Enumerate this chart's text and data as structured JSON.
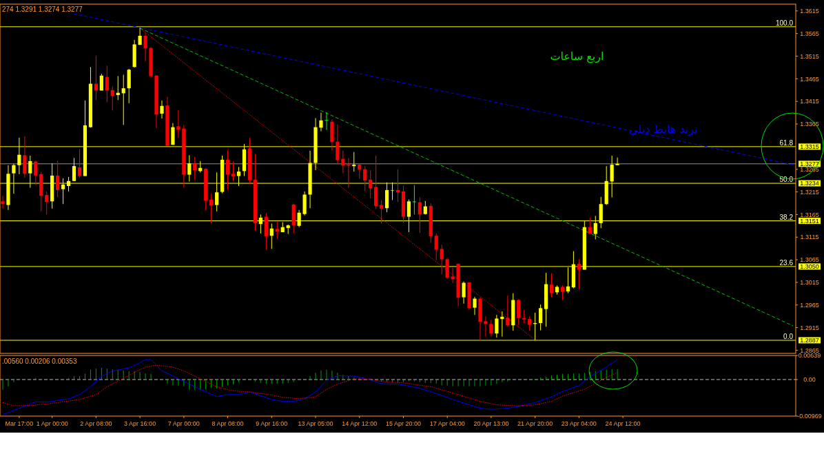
{
  "chart_data": [
    {
      "type": "candlestick",
      "tick_labels": "y",
      "categories": [
        null,
        null,
        null,
        null,
        null,
        null,
        null,
        null,
        null,
        null,
        null,
        null,
        null,
        null,
        null,
        null,
        null,
        null,
        null,
        null,
        null,
        null,
        null,
        null,
        null,
        null,
        null,
        null,
        null,
        null,
        null,
        null,
        null,
        null,
        null,
        null,
        null,
        null,
        null,
        null,
        null,
        null,
        null,
        null,
        null,
        null,
        null,
        null,
        null,
        null,
        null,
        null,
        null,
        null,
        null,
        null,
        null,
        null,
        null,
        null,
        null,
        null,
        null,
        null,
        null,
        null,
        null,
        null,
        null,
        null,
        null,
        null,
        null,
        null,
        null,
        null,
        null,
        null,
        null,
        null,
        null,
        null,
        null,
        null,
        null,
        null,
        null,
        null,
        null,
        null,
        null,
        null,
        null,
        null,
        null,
        null,
        null,
        null,
        null,
        null,
        null,
        null,
        null,
        null,
        null,
        null,
        null,
        null,
        null,
        null,
        null,
        null,
        null,
        null,
        null,
        null,
        null,
        null,
        null,
        null,
        null,
        null,
        null,
        null,
        null,
        null,
        null,
        null,
        null,
        null,
        null,
        null,
        null,
        null,
        null,
        null,
        null,
        null,
        null,
        null,
        null,
        null,
        null,
        null,
        null
      ],
      "ohlc": [
        [
          1.3194,
          1.3206,
          1.3178,
          1.3188
        ],
        [
          1.3186,
          1.3274,
          1.3175,
          1.3255
        ],
        [
          1.3256,
          1.3277,
          1.3211,
          1.3274
        ],
        [
          1.3274,
          1.3335,
          1.3254,
          1.3297
        ],
        [
          1.3296,
          1.3338,
          1.3246,
          1.3255
        ],
        [
          1.3256,
          1.3295,
          1.3224,
          1.3283
        ],
        [
          1.3282,
          1.3284,
          1.323,
          1.3251
        ],
        [
          1.3254,
          1.3259,
          1.3172,
          1.3206
        ],
        [
          1.3208,
          1.3216,
          1.3165,
          1.3193
        ],
        [
          1.3194,
          1.3278,
          1.3178,
          1.3251
        ],
        [
          1.3251,
          1.3284,
          1.3203,
          1.3219
        ],
        [
          1.3221,
          1.3245,
          1.3188,
          1.3231
        ],
        [
          1.3228,
          1.3248,
          1.3216,
          1.3239
        ],
        [
          1.3239,
          1.329,
          1.3239,
          1.3272
        ],
        [
          1.3269,
          1.3309,
          1.3247,
          1.325
        ],
        [
          1.325,
          1.3417,
          1.325,
          1.3362
        ],
        [
          1.3358,
          1.3491,
          1.3357,
          1.3454
        ],
        [
          1.3454,
          1.3516,
          1.3418,
          1.3439
        ],
        [
          1.3439,
          1.3476,
          1.3439,
          1.3472
        ],
        [
          1.3469,
          1.3494,
          1.3413,
          1.3439
        ],
        [
          1.344,
          1.3448,
          1.3395,
          1.3427
        ],
        [
          1.3429,
          1.3471,
          1.3418,
          1.3434
        ],
        [
          1.3433,
          1.3474,
          1.3363,
          1.3444
        ],
        [
          1.3444,
          1.3487,
          1.3411,
          1.3485
        ],
        [
          1.3491,
          1.3551,
          1.349,
          1.3541
        ],
        [
          1.354,
          1.3578,
          1.354,
          1.356
        ],
        [
          1.356,
          1.3566,
          1.3504,
          1.3532
        ],
        [
          1.3533,
          1.3535,
          1.3467,
          1.3471
        ],
        [
          1.3472,
          1.3473,
          1.3356,
          1.3386
        ],
        [
          1.3388,
          1.3417,
          1.3377,
          1.3405
        ],
        [
          1.3406,
          1.3425,
          1.3317,
          1.3317
        ],
        [
          1.3319,
          1.3367,
          1.3319,
          1.3358
        ],
        [
          1.336,
          1.3396,
          1.3335,
          1.3352
        ],
        [
          1.3355,
          1.3363,
          1.3224,
          1.3253
        ],
        [
          1.3253,
          1.3296,
          1.3238,
          1.3278
        ],
        [
          1.3277,
          1.3293,
          1.3241,
          1.3263
        ],
        [
          1.3261,
          1.3283,
          1.3258,
          1.3268
        ],
        [
          1.3266,
          1.3267,
          1.3174,
          1.3196
        ],
        [
          1.3198,
          1.3211,
          1.3146,
          1.3185
        ],
        [
          1.3186,
          1.3258,
          1.3172,
          1.3214
        ],
        [
          1.3215,
          1.3295,
          1.3212,
          1.3286
        ],
        [
          1.3286,
          1.3307,
          1.322,
          1.3253
        ],
        [
          1.3255,
          1.3282,
          1.3239,
          1.3249
        ],
        [
          1.325,
          1.327,
          1.3228,
          1.326
        ],
        [
          1.3261,
          1.3321,
          1.325,
          1.3309
        ],
        [
          1.3311,
          1.3334,
          1.3233,
          1.3241
        ],
        [
          1.3242,
          1.3299,
          1.3129,
          1.3146
        ],
        [
          1.3144,
          1.3165,
          1.3123,
          1.3158
        ],
        [
          1.316,
          1.3168,
          1.3087,
          1.3117
        ],
        [
          1.3118,
          1.3145,
          1.3089,
          1.3134
        ],
        [
          1.3133,
          1.3149,
          1.3111,
          1.3127
        ],
        [
          1.3126,
          1.3148,
          1.3126,
          1.3137
        ],
        [
          1.3135,
          1.3143,
          1.3122,
          1.3141
        ],
        [
          1.3187,
          1.3189,
          1.3123,
          1.3141
        ],
        [
          1.314,
          1.3175,
          1.3137,
          1.3169
        ],
        [
          1.3166,
          1.3216,
          1.3163,
          1.3209
        ],
        [
          1.3209,
          1.3306,
          1.3179,
          1.3279
        ],
        [
          1.3279,
          1.3378,
          1.3263,
          1.3358
        ],
        [
          1.3357,
          1.339,
          1.3349,
          1.3373
        ],
        [
          1.3373,
          1.3391,
          1.3352,
          1.3373
        ],
        [
          1.337,
          1.3375,
          1.3306,
          1.3325
        ],
        [
          1.3326,
          1.3364,
          1.3276,
          1.3285
        ],
        [
          1.3288,
          1.3306,
          1.3256,
          1.3273
        ],
        [
          1.3276,
          1.329,
          1.3224,
          1.3273
        ],
        [
          1.3272,
          1.3303,
          1.326,
          1.3275
        ],
        [
          1.3275,
          1.3277,
          1.3244,
          1.3264
        ],
        [
          1.3265,
          1.3272,
          1.3217,
          1.324
        ],
        [
          1.3242,
          1.3263,
          1.3201,
          1.3223
        ],
        [
          1.3226,
          1.3295,
          1.3177,
          1.3184
        ],
        [
          1.3186,
          1.3197,
          1.3145,
          1.3178
        ],
        [
          1.3179,
          1.3236,
          1.317,
          1.3219
        ],
        [
          1.3218,
          1.3236,
          1.3197,
          1.3219
        ],
        [
          1.3219,
          1.3265,
          1.3193,
          1.3214
        ],
        [
          1.3216,
          1.3229,
          1.3147,
          1.316
        ],
        [
          1.316,
          1.3198,
          1.3126,
          1.3194
        ],
        [
          1.3193,
          1.323,
          1.3165,
          1.3193
        ],
        [
          1.3192,
          1.3203,
          1.3124,
          1.3165
        ],
        [
          1.3166,
          1.3195,
          1.3165,
          1.3183
        ],
        [
          1.3184,
          1.319,
          1.3102,
          1.3117
        ],
        [
          1.3118,
          1.3123,
          1.3064,
          1.3087
        ],
        [
          1.3089,
          1.3098,
          1.3033,
          1.3066
        ],
        [
          1.3066,
          1.3069,
          1.3023,
          1.3025
        ],
        [
          1.3028,
          1.3047,
          1.3014,
          1.3022
        ],
        [
          1.3056,
          1.3057,
          1.2962,
          1.2981
        ],
        [
          1.2982,
          1.3017,
          1.2968,
          1.3014
        ],
        [
          1.3015,
          1.3015,
          1.2954,
          1.2958
        ],
        [
          1.2959,
          1.2983,
          1.2943,
          1.2979
        ],
        [
          1.2979,
          1.2982,
          1.2887,
          1.2928
        ],
        [
          1.2929,
          1.294,
          1.2895,
          1.2923
        ],
        [
          1.2923,
          1.2932,
          1.2895,
          1.2902
        ],
        [
          1.2902,
          1.2943,
          1.2893,
          1.2935
        ],
        [
          1.2934,
          1.2951,
          1.2895,
          1.2939
        ],
        [
          1.2937,
          1.2986,
          1.2917,
          1.292
        ],
        [
          1.292,
          1.2991,
          1.2908,
          1.2976
        ],
        [
          1.2976,
          1.2978,
          1.2921,
          1.2936
        ],
        [
          1.2936,
          1.2954,
          1.2925,
          1.2933
        ],
        [
          1.2934,
          1.294,
          1.2908,
          1.2921
        ],
        [
          1.2923,
          1.2948,
          1.2887,
          1.2925
        ],
        [
          1.2925,
          1.2966,
          1.2909,
          1.2958
        ],
        [
          1.2956,
          1.3036,
          1.2917,
          1.3011
        ],
        [
          1.301,
          1.3035,
          1.2982,
          1.2991
        ],
        [
          1.2993,
          1.3008,
          1.2988,
          1.3005
        ],
        [
          1.3005,
          1.3008,
          1.2976,
          1.2994
        ],
        [
          1.2995,
          1.3048,
          1.2991,
          1.3006
        ],
        [
          1.3004,
          1.3084,
          1.3002,
          1.3055
        ],
        [
          1.3056,
          1.3066,
          1.3,
          1.3043
        ],
        [
          1.3043,
          1.3151,
          1.3043,
          1.3137
        ],
        [
          1.3137,
          1.3158,
          1.3122,
          1.3123
        ],
        [
          1.3122,
          1.3162,
          1.311,
          1.3146
        ],
        [
          1.3146,
          1.3204,
          1.3135,
          1.3188
        ],
        [
          1.3188,
          1.3272,
          1.3186,
          1.3239
        ],
        [
          1.3238,
          1.3295,
          1.3203,
          1.3275
        ],
        [
          1.3274,
          1.3291,
          1.3274,
          1.3277
        ],
        null,
        null,
        null,
        null,
        null,
        null,
        null,
        null,
        null,
        null,
        null,
        null,
        null,
        null,
        null,
        null,
        null,
        null,
        null,
        null,
        null,
        null,
        null,
        null,
        null,
        null,
        null,
        null,
        null,
        null,
        null,
        null
      ],
      "ylim": [
        1.2858,
        1.363
      ],
      "yticks": [
        1.3615,
        1.3565,
        1.3515,
        1.3465,
        1.3415,
        1.3365,
        1.3265,
        1.3215,
        1.3165,
        1.3115,
        1.3065,
        1.3015,
        1.2965,
        1.2915,
        1.2865
      ],
      "y2lim": [
        1.2858,
        1.363
      ],
      "y2ticks": [
        1.3315,
        1.3277,
        1.3234,
        1.3151,
        {
          "value": 1.305,
          "label": "1.3050"
        },
        1.2887
      ],
      "series": [
        {
          "type": "line",
          "name": "ترند هابط دبلي",
          "color": "#0000ff",
          "line_style": "dashed",
          "values": [
            null,
            null,
            null,
            null,
            null,
            1.3629,
            null,
            null,
            null,
            null,
            null,
            null,
            null,
            null,
            null,
            null,
            null,
            null,
            null,
            null,
            null,
            null,
            null,
            null,
            null,
            null,
            null,
            null,
            null,
            null,
            null,
            null,
            null,
            null,
            null,
            null,
            null,
            null,
            null,
            null,
            null,
            null,
            null,
            null,
            null,
            null,
            null,
            null,
            null,
            null,
            null,
            null,
            null,
            null,
            null,
            null,
            null,
            null,
            null,
            null,
            null,
            null,
            null,
            null,
            null,
            null,
            null,
            null,
            null,
            null,
            null,
            null,
            null,
            null,
            null,
            null,
            null,
            null,
            null,
            null,
            null,
            null,
            null,
            null,
            null,
            null,
            null,
            null,
            null,
            null,
            null,
            null,
            null,
            null,
            null,
            null,
            null,
            null,
            null,
            null,
            null,
            null,
            null,
            null,
            null,
            null,
            null,
            null,
            null,
            null,
            null,
            null,
            null,
            null,
            null,
            null,
            null,
            null,
            null,
            null,
            null,
            null,
            null,
            null,
            null,
            null,
            null,
            null,
            null,
            null,
            null,
            null,
            null,
            null,
            null,
            null,
            null,
            null,
            null,
            null,
            null,
            null,
            null,
            null,
            1.3275
          ]
        },
        {
          "type": "line",
          "color": "#00c000",
          "line_style": "dashed",
          "values": [
            null,
            null,
            null,
            null,
            null,
            null,
            null,
            null,
            null,
            null,
            null,
            null,
            null,
            null,
            null,
            null,
            null,
            null,
            null,
            null,
            null,
            null,
            null,
            null,
            null,
            1.3577,
            null,
            null,
            null,
            null,
            null,
            null,
            null,
            null,
            null,
            null,
            null,
            null,
            null,
            null,
            null,
            null,
            null,
            null,
            null,
            null,
            null,
            null,
            null,
            null,
            null,
            null,
            null,
            null,
            null,
            null,
            null,
            null,
            null,
            null,
            null,
            null,
            null,
            null,
            null,
            null,
            null,
            null,
            null,
            null,
            null,
            null,
            null,
            null,
            null,
            null,
            null,
            null,
            null,
            null,
            null,
            null,
            null,
            null,
            null,
            null,
            null,
            null,
            null,
            null,
            null,
            null,
            null,
            null,
            null,
            null,
            null,
            null,
            null,
            null,
            null,
            null,
            null,
            null,
            null,
            null,
            null,
            null,
            null,
            null,
            null,
            null,
            null,
            null,
            null,
            null,
            null,
            null,
            null,
            null,
            null,
            null,
            null,
            null,
            null,
            null,
            null,
            null,
            null,
            null,
            null,
            null,
            null,
            null,
            null,
            null,
            null,
            null,
            null,
            null,
            null,
            null,
            null,
            null,
            1.2919
          ]
        },
        {
          "type": "line",
          "color": "#ff0000",
          "line_style": "dotted",
          "values": [
            null,
            null,
            null,
            null,
            null,
            null,
            null,
            null,
            null,
            null,
            null,
            null,
            null,
            null,
            null,
            null,
            null,
            null,
            null,
            null,
            null,
            null,
            null,
            null,
            null,
            1.3577,
            null,
            null,
            null,
            null,
            null,
            null,
            null,
            null,
            null,
            null,
            null,
            null,
            null,
            null,
            null,
            null,
            null,
            null,
            null,
            null,
            null,
            null,
            null,
            null,
            null,
            null,
            null,
            null,
            null,
            null,
            null,
            null,
            null,
            null,
            null,
            null,
            null,
            null,
            null,
            null,
            null,
            null,
            null,
            null,
            null,
            null,
            null,
            null,
            null,
            null,
            null,
            null,
            null,
            null,
            null,
            null,
            null,
            null,
            null,
            null,
            null,
            null,
            null,
            null,
            null,
            null,
            null,
            null,
            null,
            null,
            null,
            1.2888,
            null,
            null,
            null,
            null,
            null,
            null,
            null,
            null,
            null,
            null,
            null,
            null,
            null,
            null,
            null,
            null,
            null,
            null,
            null,
            null,
            null,
            null,
            null,
            null,
            null,
            null,
            null,
            null,
            null,
            null,
            null,
            null,
            null,
            null,
            null,
            null,
            null,
            null,
            null,
            null,
            null,
            null,
            null,
            null,
            null,
            null,
            null
          ]
        }
      ],
      "ref_lines": [
        {
          "axis": "y",
          "value": 1.358,
          "color": "#ffff00"
        },
        {
          "axis": "y",
          "value": 1.3315,
          "color": "#ffff00"
        },
        {
          "axis": "y",
          "value": 1.3234,
          "color": "#ffff00"
        },
        {
          "axis": "y",
          "value": 1.3151,
          "color": "#ffff00"
        },
        {
          "axis": "y",
          "value": 1.305,
          "color": "#ffff00"
        },
        {
          "axis": "y",
          "value": 1.2887,
          "color": "#ffff00"
        },
        {
          "axis": "y",
          "value": 1.3277,
          "color": "#909090"
        }
      ],
      "annotations": [
        "274 1.3291 1.3274 1.3277",
        "اربع ساعات",
        {
          "text": "100.0",
          "y": 1.358
        },
        {
          "text": "61.8",
          "y": 1.3315
        },
        {
          "text": "50.0",
          "y": 1.3234
        },
        {
          "text": "38.2",
          "y": 1.3151
        },
        {
          "text": "23.6",
          "y": 1.305
        },
        {
          "text": "0.0",
          "y": 1.2887
        }
      ]
    },
    {
      "type": "bar",
      "categories": [
        null,
        null,
        null,
        "Mar 17:00",
        null,
        null,
        null,
        null,
        null,
        "1 Apr 00:00",
        null,
        null,
        null,
        null,
        null,
        null,
        null,
        "2 Apr 08:00",
        null,
        null,
        null,
        null,
        null,
        null,
        null,
        "3 Apr 16:00",
        null,
        null,
        null,
        null,
        null,
        null,
        null,
        "7 Apr 00:00",
        null,
        null,
        null,
        null,
        null,
        null,
        null,
        "8 Apr 08:00",
        null,
        null,
        null,
        null,
        null,
        null,
        null,
        "9 Apr 16:00",
        null,
        null,
        null,
        null,
        null,
        null,
        null,
        "13 Apr 05:00",
        null,
        null,
        null,
        null,
        null,
        null,
        null,
        "14 Apr 12:00",
        null,
        null,
        null,
        null,
        null,
        null,
        null,
        "15 Apr 20:00",
        null,
        null,
        null,
        null,
        null,
        null,
        null,
        "17 Apr 04:00",
        null,
        null,
        null,
        null,
        null,
        null,
        null,
        "20 Apr 13:00",
        null,
        null,
        null,
        null,
        null,
        null,
        null,
        "21 Apr 20:00",
        null,
        null,
        null,
        null,
        null,
        null,
        null,
        "23 Apr 04:00",
        null,
        null,
        null,
        null,
        null,
        null,
        null,
        "24 Apr 12:00",
        null,
        null,
        null,
        null,
        null,
        null,
        null,
        null,
        null,
        null,
        null,
        null,
        null,
        null,
        null,
        null,
        null,
        null,
        null,
        null,
        null,
        null,
        null,
        null,
        null,
        null,
        null,
        null,
        null,
        null,
        null
      ],
      "ylim": [
        -0.00969,
        0.00639
      ],
      "yticks": [
        0.00639,
        {
          "value": 0,
          "label": "0.00"
        },
        -0.00969
      ],
      "series": [
        {
          "type": "bar",
          "color": "#00a000",
          "values": [
            -0.0027,
            -0.0018,
            -0.0007,
            0,
            0,
            0.0002,
            0.0004,
            0.0002,
            0,
            0.0002,
            0.0002,
            0.0002,
            0.0004,
            0.0009,
            0.0009,
            0.0015,
            0.0026,
            0.0029,
            0.0031,
            0.0029,
            0.0027,
            0.0026,
            0.0024,
            0.0022,
            0.0022,
            0.002,
            0.0016,
            0.0015,
            0.0002,
            0,
            -0.0011,
            -0.0015,
            -0.0016,
            -0.0018,
            -0.0027,
            -0.0027,
            -0.0026,
            -0.0026,
            -0.0022,
            -0.0024,
            -0.002,
            -0.0015,
            -0.0013,
            -0.0007,
            0,
            0,
            -0.0005,
            -0.0009,
            -0.0011,
            -0.0011,
            -0.0011,
            -0.0011,
            -0.0009,
            -0.0007,
            null,
            0.0002,
            0.0009,
            0.0018,
            0.0024,
            0.0026,
            0.0024,
            0.0018,
            0.0013,
            0.0009,
            0.0005,
            0.0004,
            null,
            0,
            null,
            -0.0005,
            -0.0007,
            -0.0007,
            -0.0007,
            -0.0007,
            -0.0005,
            -0.0005,
            -0.0007,
            -0.0009,
            -0.0009,
            -0.0011,
            -0.0015,
            -0.0016,
            -0.0018,
            -0.0018,
            -0.0018,
            -0.0018,
            -0.0018,
            -0.0018,
            -0.0016,
            -0.0015,
            -0.0011,
            -0.0007,
            -0.0005,
            null,
            0,
            0,
            0,
            0.0002,
            0.0005,
            0.0007,
            0.0011,
            0.0013,
            0.0015,
            0.0015,
            0.0016,
            0.0016,
            0.0018,
            0.002,
            0.0022,
            0.0024,
            0.0026,
            0.0027,
            0.0027,
            null,
            null,
            null,
            null,
            null,
            null,
            null,
            null,
            null,
            null,
            null,
            null,
            null,
            null,
            null,
            null,
            null,
            null,
            null,
            null,
            null,
            null,
            null,
            null,
            null,
            null,
            null,
            null,
            null,
            null,
            null,
            null
          ]
        },
        {
          "type": "line",
          "color": "#0000ff",
          "values": [
            -0.0093,
            null,
            null,
            -0.0076,
            null,
            null,
            -0.0059,
            null,
            -0.006,
            null,
            null,
            null,
            -0.0051,
            null,
            -0.004,
            null,
            -0.0019,
            null,
            0.0009,
            null,
            0.0023,
            null,
            null,
            0.0031,
            null,
            0.0044,
            0.0053,
            0.0053,
            null,
            0.0023,
            null,
            0.001,
            null,
            -0.0005,
            null,
            null,
            -0.0026,
            null,
            null,
            -0.0045,
            null,
            -0.004,
            null,
            -0.004,
            null,
            -0.0033,
            -0.0038,
            null,
            null,
            -0.0053,
            null,
            -0.0058,
            null,
            -0.0058,
            null,
            -0.0051,
            null,
            -0.0033,
            null,
            -0.0002,
            null,
            0.001,
            null,
            null,
            0.0009,
            null,
            0.0003,
            null,
            null,
            -0.0011,
            null,
            null,
            -0.0012,
            null,
            -0.0017,
            null,
            -0.0023,
            null,
            null,
            -0.0037,
            null,
            null,
            null,
            -0.0058,
            null,
            null,
            null,
            -0.0076,
            null,
            -0.0079,
            null,
            null,
            -0.0076,
            null,
            -0.0071,
            null,
            null,
            -0.0061,
            null,
            null,
            -0.0046,
            null,
            -0.0032,
            null,
            null,
            -0.0016,
            null,
            0.0008,
            null,
            null,
            0.0033,
            null,
            0.0053,
            null,
            null,
            null,
            null,
            null,
            null,
            null,
            null,
            null,
            null,
            null,
            null,
            null,
            null,
            null,
            null,
            null,
            null,
            null,
            null,
            null,
            null,
            null,
            null,
            null,
            null,
            null,
            null,
            null,
            null,
            null,
            null
          ]
        },
        {
          "type": "line",
          "color": "#ff0000",
          "line_style": "dotted",
          "values": [
            -0.0061,
            null,
            -0.007,
            null,
            null,
            -0.0069,
            null,
            null,
            null,
            -0.0063,
            null,
            null,
            null,
            null,
            -0.0053,
            null,
            null,
            -0.004,
            null,
            -0.0019,
            null,
            null,
            0.0003,
            null,
            0.0019,
            null,
            0.0033,
            null,
            0.0038,
            null,
            null,
            0.0033,
            null,
            0.0023,
            null,
            null,
            0.0002,
            null,
            null,
            -0.0019,
            null,
            null,
            -0.003,
            null,
            null,
            -0.0033,
            null,
            null,
            -0.0039,
            null,
            null,
            -0.0047,
            null,
            null,
            -0.0051,
            null,
            null,
            -0.0046,
            null,
            -0.0026,
            null,
            -0.0012,
            null,
            null,
            0.0002,
            null,
            null,
            0,
            null,
            -0.0005,
            null,
            null,
            null,
            -0.0009,
            -0.0011,
            null,
            null,
            null,
            -0.0019,
            null,
            null,
            null,
            null,
            -0.004,
            null,
            null,
            null,
            -0.0058,
            null,
            null,
            -0.0067,
            null,
            null,
            null,
            -0.007,
            null,
            null,
            -0.0067,
            null,
            null,
            -0.0058,
            null,
            -0.0044,
            null,
            null,
            null,
            -0.0026,
            null,
            null,
            -0.0002,
            null,
            null,
            0.0019,
            null,
            null,
            null,
            null,
            null,
            null,
            null,
            null,
            null,
            null,
            null,
            null,
            null,
            null,
            null,
            null,
            null,
            null,
            null,
            null,
            null,
            null,
            null,
            null,
            null,
            null,
            null,
            null,
            null,
            null,
            null,
            null
          ]
        }
      ],
      "ref_lines": [
        {
          "axis": "y",
          "value": 0,
          "color": "#c0c0c0",
          "line_style": "dashed"
        }
      ],
      "annotations": [
        ".00560 0.00206 0.00353"
      ]
    }
  ]
}
